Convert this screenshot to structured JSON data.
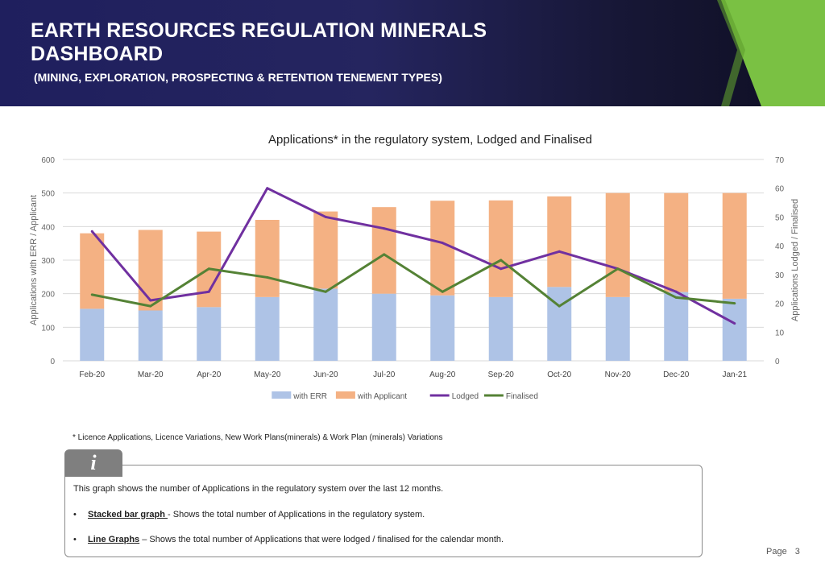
{
  "header": {
    "title": "EARTH RESOURCES REGULATION MINERALS DASHBOARD",
    "subtitle": "(MINING, EXPLORATION, PROSPECTING & RETENTION TENEMENT TYPES)",
    "accent_green": "#7ac143",
    "navy": "#1f1f5e"
  },
  "chart_data": {
    "type": "bar",
    "title": "Applications* in the regulatory system, Lodged and Finalised",
    "categories": [
      "Feb-20",
      "Mar-20",
      "Apr-20",
      "May-20",
      "Jun-20",
      "Jul-20",
      "Aug-20",
      "Sep-20",
      "Oct-20",
      "Nov-20",
      "Dec-20",
      "Jan-21"
    ],
    "ylabel": "Applications with ERR / Applicant",
    "y2label": "Applications Lodged / Finalised",
    "ylim": [
      0,
      600
    ],
    "yticks": [
      0,
      100,
      200,
      300,
      400,
      500,
      600
    ],
    "y2lim": [
      0,
      70
    ],
    "y2ticks": [
      0,
      10,
      20,
      30,
      40,
      50,
      60,
      70
    ],
    "grid": true,
    "legend_position": "bottom",
    "stacked_series": [
      {
        "name": "with ERR",
        "color": "#aec3e6",
        "values": [
          155,
          150,
          160,
          190,
          215,
          200,
          195,
          190,
          220,
          190,
          205,
          185
        ]
      },
      {
        "name": "with Applicant",
        "color": "#f4b183",
        "values": [
          225,
          240,
          225,
          230,
          230,
          258,
          282,
          288,
          270,
          310,
          295,
          315
        ]
      }
    ],
    "line_series": [
      {
        "name": "Lodged",
        "color": "#7030a0",
        "axis": "right",
        "values": [
          45,
          21,
          24,
          60,
          50,
          46,
          41,
          32,
          38,
          32,
          24,
          13
        ]
      },
      {
        "name": "Finalised",
        "color": "#548235",
        "axis": "right",
        "values": [
          23,
          19,
          32,
          29,
          24,
          37,
          24,
          35,
          19,
          32,
          22,
          20
        ]
      }
    ]
  },
  "footnote": "* Licence Applications, Licence Variations, New Work Plans(minerals) & Work Plan (minerals) Variations",
  "info": {
    "icon_label": "i",
    "description": "This graph shows the number of Applications in the regulatory system over the last 12 months.",
    "bullets": [
      {
        "term": "Stacked bar graph ",
        "text": "-  Shows the total number of Applications in the regulatory system."
      },
      {
        "term": "Line Graphs",
        "text": " – Shows the total number of  Applications that were lodged / finalised for the calendar month."
      }
    ]
  },
  "page": {
    "label": "Page",
    "number": "3"
  }
}
